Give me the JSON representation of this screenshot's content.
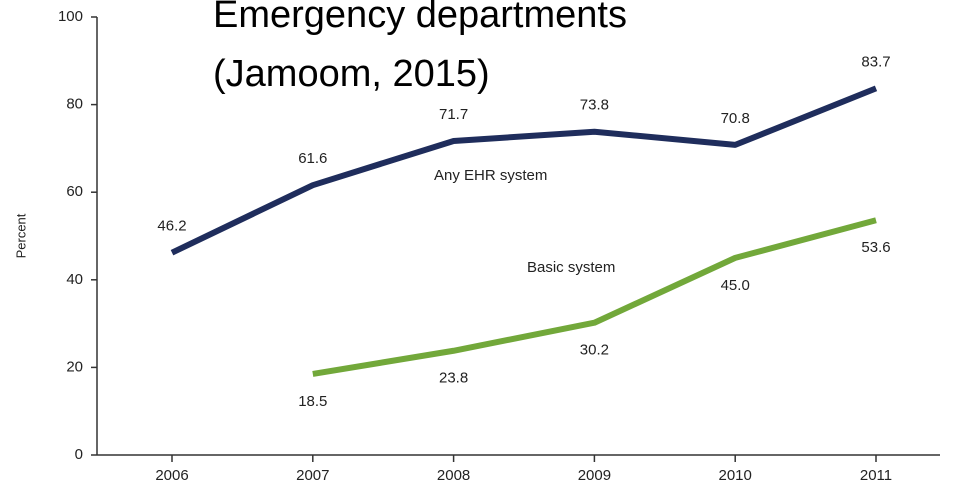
{
  "chart_data": {
    "type": "line",
    "title": [
      "Emergency departments",
      "(Jamoom, 2015)"
    ],
    "ylabel": "Percent",
    "categories": [
      "2006",
      "2007",
      "2008",
      "2009",
      "2010",
      "2011"
    ],
    "series": [
      {
        "name": "Any EHR system",
        "color": "#1f2d5c",
        "values": [
          46.2,
          61.6,
          71.7,
          73.8,
          70.8,
          83.7
        ]
      },
      {
        "name": "Basic system",
        "color": "#72a83a",
        "values": [
          null,
          18.5,
          23.8,
          30.2,
          45.0,
          53.6
        ],
        "value_labels": [
          null,
          "18.5",
          "23.8",
          "30.2",
          "45.0",
          "53.6"
        ]
      }
    ],
    "ylim": [
      0,
      100
    ],
    "yticks": [
      0,
      20,
      40,
      60,
      80,
      100
    ]
  }
}
